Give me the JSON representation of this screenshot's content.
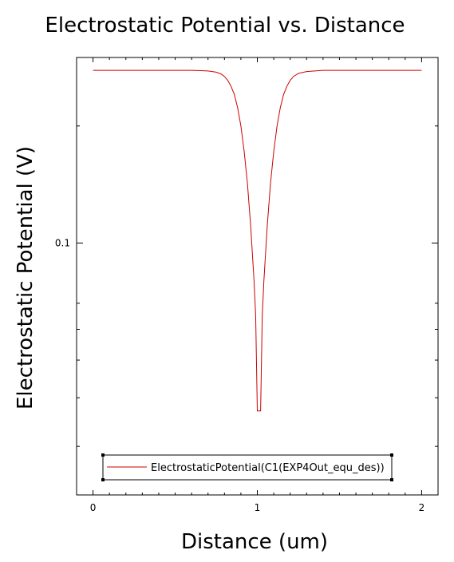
{
  "chart_data": {
    "type": "line",
    "title": "Electrostatic Potential vs. Distance",
    "xlabel": "Distance (um)",
    "ylabel": "Electrostatic Potential (V)",
    "xscale": "linear",
    "yscale": "log",
    "xlim": [
      -0.1,
      2.1
    ],
    "ylim": [
      0.0225,
      0.3
    ],
    "xticks": [
      0,
      1,
      2
    ],
    "xtick_labels": [
      "0",
      "1",
      "2"
    ],
    "yticks_major": [
      0.1
    ],
    "ytick_labels": [
      "0.1"
    ],
    "yticks_minor": [
      0.03,
      0.04,
      0.05,
      0.06,
      0.07,
      0.2,
      0.3
    ],
    "grid": false,
    "legend_position": "bottom-center",
    "series": [
      {
        "name": "ElectrostaticPotential(C1(EXP4Out_equ_des))",
        "color": "#cc0000",
        "x": [
          0,
          0.2,
          0.4,
          0.6,
          0.7,
          0.75,
          0.78,
          0.8,
          0.82,
          0.84,
          0.86,
          0.88,
          0.9,
          0.92,
          0.94,
          0.96,
          0.98,
          0.99,
          1.0,
          1.01,
          1.02,
          1.03,
          1.04,
          1.06,
          1.08,
          1.1,
          1.12,
          1.14,
          1.16,
          1.18,
          1.2,
          1.22,
          1.25,
          1.3,
          1.4,
          1.6,
          1.8,
          2.0
        ],
        "y": [
          0.278,
          0.278,
          0.278,
          0.278,
          0.277,
          0.275,
          0.272,
          0.268,
          0.262,
          0.253,
          0.241,
          0.223,
          0.2,
          0.172,
          0.142,
          0.11,
          0.08,
          0.065,
          0.037,
          0.037,
          0.037,
          0.065,
          0.08,
          0.11,
          0.142,
          0.172,
          0.2,
          0.223,
          0.241,
          0.253,
          0.262,
          0.268,
          0.273,
          0.276,
          0.278,
          0.278,
          0.278,
          0.278
        ]
      }
    ]
  }
}
